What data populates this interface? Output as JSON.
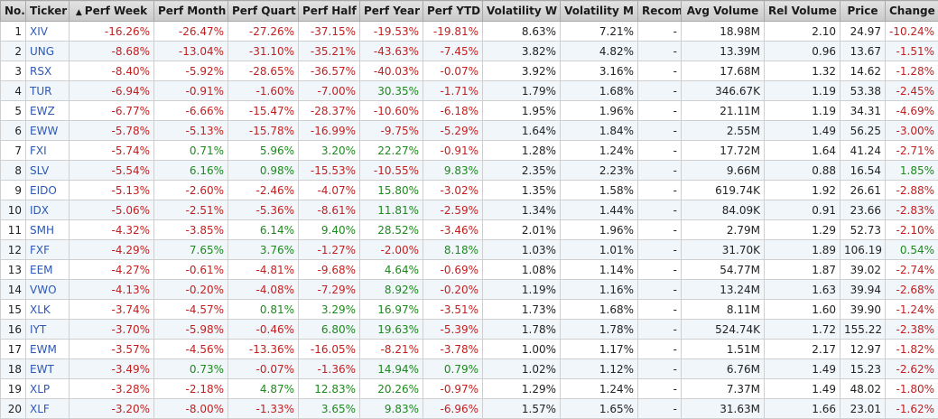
{
  "columns": [
    {
      "key": "no",
      "label": "No.",
      "sort": false
    },
    {
      "key": "ticker",
      "label": "Ticker",
      "sort": false
    },
    {
      "key": "perf_week",
      "label": "Perf Week",
      "sort": true
    },
    {
      "key": "perf_month",
      "label": "Perf Month",
      "sort": false
    },
    {
      "key": "perf_quart",
      "label": "Perf Quart",
      "sort": false
    },
    {
      "key": "perf_half",
      "label": "Perf Half",
      "sort": false
    },
    {
      "key": "perf_year",
      "label": "Perf Year",
      "sort": false
    },
    {
      "key": "perf_ytd",
      "label": "Perf YTD",
      "sort": false
    },
    {
      "key": "vol_w",
      "label": "Volatility W",
      "sort": false
    },
    {
      "key": "vol_m",
      "label": "Volatility M",
      "sort": false
    },
    {
      "key": "recom",
      "label": "Recom",
      "sort": false
    },
    {
      "key": "avg_volume",
      "label": "Avg Volume",
      "sort": false
    },
    {
      "key": "rel_volume",
      "label": "Rel Volume",
      "sort": false
    },
    {
      "key": "price",
      "label": "Price",
      "sort": false
    },
    {
      "key": "change",
      "label": "Change",
      "sort": false
    }
  ],
  "sort_indicator": "▲",
  "colors": {
    "negative": "#c21f1f",
    "positive": "#1c8a1c",
    "link": "#2d58b4"
  },
  "rows": [
    [
      "1",
      "XIV",
      "-16.26%",
      "-26.47%",
      "-27.26%",
      "-37.15%",
      "-19.53%",
      "-19.81%",
      "8.63%",
      "7.21%",
      "-",
      "18.98M",
      "2.10",
      "24.97",
      "-10.24%"
    ],
    [
      "2",
      "UNG",
      "-8.68%",
      "-13.04%",
      "-31.10%",
      "-35.21%",
      "-43.63%",
      "-7.45%",
      "3.82%",
      "4.82%",
      "-",
      "13.39M",
      "0.96",
      "13.67",
      "-1.51%"
    ],
    [
      "3",
      "RSX",
      "-8.40%",
      "-5.92%",
      "-28.65%",
      "-36.57%",
      "-40.03%",
      "-0.07%",
      "3.92%",
      "3.16%",
      "-",
      "17.68M",
      "1.32",
      "14.62",
      "-1.28%"
    ],
    [
      "4",
      "TUR",
      "-6.94%",
      "-0.91%",
      "-1.60%",
      "-7.00%",
      "30.35%",
      "-1.71%",
      "1.79%",
      "1.68%",
      "-",
      "346.67K",
      "1.19",
      "53.38",
      "-2.45%"
    ],
    [
      "5",
      "EWZ",
      "-6.77%",
      "-6.66%",
      "-15.47%",
      "-28.37%",
      "-10.60%",
      "-6.18%",
      "1.95%",
      "1.96%",
      "-",
      "21.11M",
      "1.19",
      "34.31",
      "-4.69%"
    ],
    [
      "6",
      "EWW",
      "-5.78%",
      "-5.13%",
      "-15.78%",
      "-16.99%",
      "-9.75%",
      "-5.29%",
      "1.64%",
      "1.84%",
      "-",
      "2.55M",
      "1.49",
      "56.25",
      "-3.00%"
    ],
    [
      "7",
      "FXI",
      "-5.74%",
      "0.71%",
      "5.96%",
      "3.20%",
      "22.27%",
      "-0.91%",
      "1.28%",
      "1.24%",
      "-",
      "17.72M",
      "1.64",
      "41.24",
      "-2.71%"
    ],
    [
      "8",
      "SLV",
      "-5.54%",
      "6.16%",
      "0.98%",
      "-15.53%",
      "-10.55%",
      "9.83%",
      "2.35%",
      "2.23%",
      "-",
      "9.66M",
      "0.88",
      "16.54",
      "1.85%"
    ],
    [
      "9",
      "EIDO",
      "-5.13%",
      "-2.60%",
      "-2.46%",
      "-4.07%",
      "15.80%",
      "-3.02%",
      "1.35%",
      "1.58%",
      "-",
      "619.74K",
      "1.92",
      "26.61",
      "-2.88%"
    ],
    [
      "10",
      "IDX",
      "-5.06%",
      "-2.51%",
      "-5.36%",
      "-8.61%",
      "11.81%",
      "-2.59%",
      "1.34%",
      "1.44%",
      "-",
      "84.09K",
      "0.91",
      "23.66",
      "-2.83%"
    ],
    [
      "11",
      "SMH",
      "-4.32%",
      "-3.85%",
      "6.14%",
      "9.40%",
      "28.52%",
      "-3.46%",
      "2.01%",
      "1.96%",
      "-",
      "2.79M",
      "1.29",
      "52.73",
      "-2.10%"
    ],
    [
      "12",
      "FXF",
      "-4.29%",
      "7.65%",
      "3.76%",
      "-1.27%",
      "-2.00%",
      "8.18%",
      "1.03%",
      "1.01%",
      "-",
      "31.70K",
      "1.89",
      "106.19",
      "0.54%"
    ],
    [
      "13",
      "EEM",
      "-4.27%",
      "-0.61%",
      "-4.81%",
      "-9.68%",
      "4.64%",
      "-0.69%",
      "1.08%",
      "1.14%",
      "-",
      "54.77M",
      "1.87",
      "39.02",
      "-2.74%"
    ],
    [
      "14",
      "VWO",
      "-4.13%",
      "-0.20%",
      "-4.08%",
      "-7.29%",
      "8.92%",
      "-0.20%",
      "1.19%",
      "1.16%",
      "-",
      "13.24M",
      "1.63",
      "39.94",
      "-2.68%"
    ],
    [
      "15",
      "XLK",
      "-3.74%",
      "-4.57%",
      "0.81%",
      "3.29%",
      "16.97%",
      "-3.51%",
      "1.73%",
      "1.68%",
      "-",
      "8.11M",
      "1.60",
      "39.90",
      "-1.24%"
    ],
    [
      "16",
      "IYT",
      "-3.70%",
      "-5.98%",
      "-0.46%",
      "6.80%",
      "19.63%",
      "-5.39%",
      "1.78%",
      "1.78%",
      "-",
      "524.74K",
      "1.72",
      "155.22",
      "-2.38%"
    ],
    [
      "17",
      "EWM",
      "-3.57%",
      "-4.56%",
      "-13.36%",
      "-16.05%",
      "-8.21%",
      "-3.78%",
      "1.00%",
      "1.17%",
      "-",
      "1.51M",
      "2.17",
      "12.97",
      "-1.82%"
    ],
    [
      "18",
      "EWT",
      "-3.49%",
      "0.73%",
      "-0.07%",
      "-1.36%",
      "14.94%",
      "0.79%",
      "1.02%",
      "1.12%",
      "-",
      "6.76M",
      "1.49",
      "15.23",
      "-2.62%"
    ],
    [
      "19",
      "XLP",
      "-3.28%",
      "-2.18%",
      "4.87%",
      "12.83%",
      "20.26%",
      "-0.97%",
      "1.29%",
      "1.24%",
      "-",
      "7.37M",
      "1.49",
      "48.02",
      "-1.80%"
    ],
    [
      "20",
      "XLF",
      "-3.20%",
      "-8.00%",
      "-1.33%",
      "3.65%",
      "9.83%",
      "-6.96%",
      "1.57%",
      "1.65%",
      "-",
      "31.63M",
      "1.66",
      "23.01",
      "-1.62%"
    ]
  ]
}
